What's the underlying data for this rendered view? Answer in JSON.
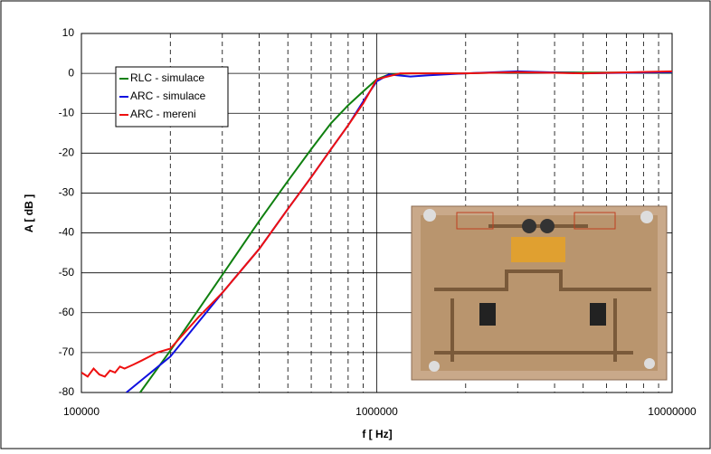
{
  "chart_data": {
    "type": "line",
    "xlabel": "f [ Hz]",
    "ylabel": "A [ dB ]",
    "xscale": "log",
    "xlim": [
      100000,
      10000000
    ],
    "xticks": [
      100000,
      1000000,
      10000000
    ],
    "ylim": [
      -80,
      10
    ],
    "yticks": [
      -80,
      -70,
      -60,
      -50,
      -40,
      -30,
      -20,
      -10,
      0,
      10
    ],
    "grid": true,
    "minor_grid": true,
    "legend": "upper left",
    "series": [
      {
        "name": "RLC - simulace",
        "color": "#108010",
        "x": [
          158000,
          200000,
          300000,
          400000,
          500000,
          600000,
          700000,
          800000,
          900000,
          1000000,
          1100000,
          1300000,
          2000000,
          3000000,
          5000000,
          10000000
        ],
        "values": [
          -80,
          -69.5,
          -50.5,
          -37,
          -27,
          -19,
          -12.5,
          -8,
          -4.5,
          -1.5,
          -0.3,
          0,
          0,
          0.3,
          0.2,
          0.2
        ]
      },
      {
        "name": "ARC - simulace",
        "color": "#1010e0",
        "x": [
          142000,
          200000,
          300000,
          400000,
          500000,
          600000,
          700000,
          800000,
          900000,
          1000000,
          1100000,
          1300000,
          1500000,
          2000000,
          3000000,
          5000000,
          10000000
        ],
        "values": [
          -80,
          -71,
          -55,
          -44,
          -34,
          -26,
          -19,
          -13,
          -7,
          -2,
          -0.3,
          -0.8,
          -0.5,
          0,
          0.5,
          0,
          0.3
        ]
      },
      {
        "name": "ARC - mereni",
        "color": "#ee1010",
        "x": [
          100000,
          105000,
          110000,
          115000,
          120000,
          125000,
          130000,
          135000,
          140000,
          150000,
          160000,
          170000,
          180000,
          200000,
          250000,
          300000,
          400000,
          500000,
          600000,
          700000,
          800000,
          900000,
          1000000,
          1200000,
          2000000,
          3000000,
          5000000,
          10000000
        ],
        "values": [
          -75,
          -76,
          -74,
          -75.5,
          -76,
          -74.5,
          -75,
          -73.5,
          -74,
          -73,
          -72,
          -71,
          -70,
          -69,
          -61,
          -55,
          -44,
          -34,
          -26,
          -19,
          -13,
          -7.5,
          -1.5,
          0,
          0,
          0.3,
          0,
          0.5
        ]
      }
    ]
  }
}
